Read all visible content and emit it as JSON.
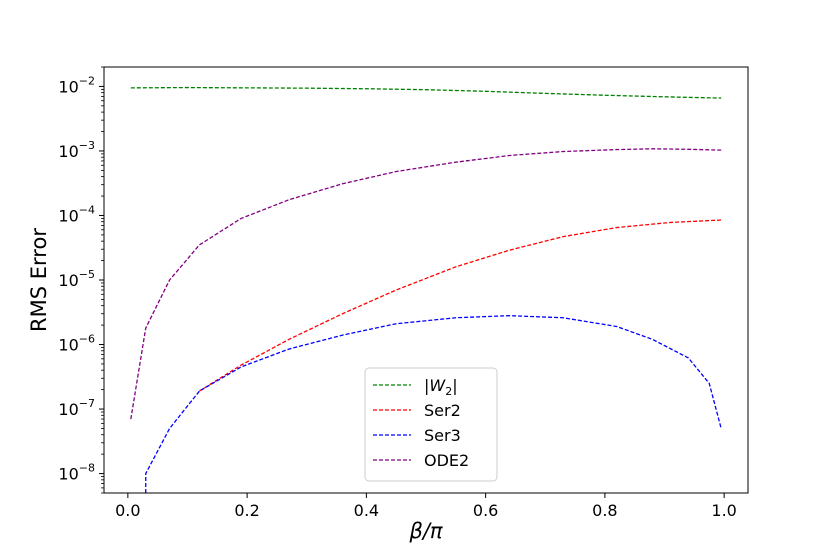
{
  "chart_data": {
    "type": "line",
    "title": "",
    "xlabel": "β/π",
    "ylabel": "RMS Error",
    "xlim": [
      -0.04,
      1.04
    ],
    "ylim": [
      5e-09,
      0.02
    ],
    "yscale": "log",
    "x_ticks": [
      0.0,
      0.2,
      0.4,
      0.6,
      0.8,
      1.0
    ],
    "x_tick_labels": [
      "0.0",
      "0.2",
      "0.4",
      "0.6",
      "0.8",
      "1.0"
    ],
    "y_ticks": [
      1e-08,
      1e-07,
      1e-06,
      1e-05,
      0.0001,
      0.001,
      0.01
    ],
    "y_tick_labels": [
      {
        "base": "10",
        "exp": "−8"
      },
      {
        "base": "10",
        "exp": "−7"
      },
      {
        "base": "10",
        "exp": "−6"
      },
      {
        "base": "10",
        "exp": "−5"
      },
      {
        "base": "10",
        "exp": "−4"
      },
      {
        "base": "10",
        "exp": "−3"
      },
      {
        "base": "10",
        "exp": "−2"
      }
    ],
    "grid": false,
    "legend_position": "bottom-center",
    "series": [
      {
        "name": "|W2|",
        "label_parts": {
          "pre": "|",
          "italic": "W",
          "sub": "2",
          "post": "|"
        },
        "color": "#008000",
        "style": "dashed",
        "x": [
          0.005,
          0.1,
          0.2,
          0.3,
          0.4,
          0.5,
          0.6,
          0.7,
          0.8,
          0.9,
          0.995
        ],
        "y": [
          0.0095,
          0.0096,
          0.0095,
          0.0094,
          0.0092,
          0.0089,
          0.0084,
          0.0078,
          0.0073,
          0.0069,
          0.0066
        ]
      },
      {
        "name": "Ser2",
        "color": "#ff0000",
        "style": "dashed",
        "x": [
          0.12,
          0.19,
          0.27,
          0.36,
          0.45,
          0.55,
          0.64,
          0.73,
          0.82,
          0.91,
          0.995
        ],
        "y": [
          1.9e-07,
          4.8e-07,
          1.2e-06,
          3e-06,
          7e-06,
          1.6e-05,
          2.9e-05,
          4.7e-05,
          6.5e-05,
          7.8e-05,
          8.5e-05
        ]
      },
      {
        "name": "Ser3",
        "color": "#0000ff",
        "style": "dashed",
        "x": [
          0.03,
          0.03,
          0.07,
          0.12,
          0.19,
          0.27,
          0.36,
          0.45,
          0.55,
          0.64,
          0.73,
          0.82,
          0.88,
          0.94,
          0.975,
          0.995
        ],
        "y": [
          5e-09,
          1e-08,
          5e-08,
          1.9e-07,
          4.5e-07,
          8.5e-07,
          1.4e-06,
          2.1e-06,
          2.6e-06,
          2.8e-06,
          2.6e-06,
          1.9e-06,
          1.2e-06,
          6.2e-07,
          2.5e-07,
          5e-08
        ]
      },
      {
        "name": "ODE2",
        "color": "#800080",
        "style": "dashed",
        "x": [
          0.005,
          0.03,
          0.07,
          0.12,
          0.19,
          0.27,
          0.36,
          0.45,
          0.55,
          0.64,
          0.73,
          0.82,
          0.88,
          0.94,
          0.995
        ],
        "y": [
          7e-08,
          1.8e-06,
          1e-05,
          3.5e-05,
          9e-05,
          0.000175,
          0.00031,
          0.00048,
          0.00067,
          0.00085,
          0.00098,
          0.00105,
          0.00108,
          0.00106,
          0.00103
        ]
      }
    ]
  }
}
